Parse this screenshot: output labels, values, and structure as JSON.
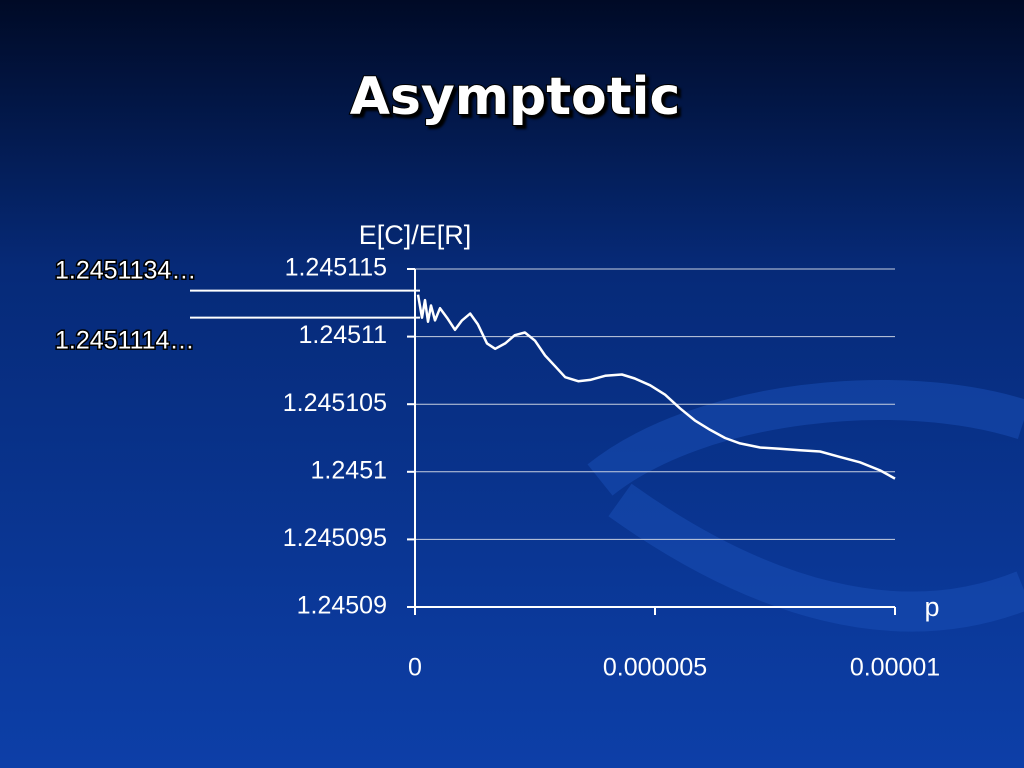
{
  "chart_data": {
    "type": "line",
    "title": "Asymptotic",
    "y_label": "E[C]/E[R]",
    "x_label": "p",
    "color": "#ffffff",
    "grid": true,
    "xlim": [
      0,
      1e-05
    ],
    "xticks": [
      0,
      5e-06,
      1e-05
    ],
    "ylim": [
      1.24509,
      1.245115
    ],
    "yticks": [
      1.24509,
      1.245095,
      1.2451,
      1.245105,
      1.24511,
      1.245115
    ],
    "reference_lines": [
      {
        "value": 1.2451134,
        "label": "1.2451134…"
      },
      {
        "value": 1.2451114,
        "label": "1.2451114…"
      }
    ],
    "x": [
      6.25e-08,
      1.46e-07,
      2.08e-07,
      2.71e-07,
      3.33e-07,
      4.17e-07,
      5.21e-07,
      6.67e-07,
      8.33e-07,
      9.79e-07,
      1.15e-06,
      1.31e-06,
      1.5e-06,
      1.67e-06,
      1.88e-06,
      2.08e-06,
      2.29e-06,
      2.5e-06,
      2.71e-06,
      2.92e-06,
      3.13e-06,
      3.4e-06,
      3.65e-06,
      3.96e-06,
      4.31e-06,
      4.58e-06,
      4.9e-06,
      5.21e-06,
      5.52e-06,
      5.83e-06,
      6.15e-06,
      6.46e-06,
      6.77e-06,
      7.19e-06,
      7.6e-06,
      8.02e-06,
      8.44e-06,
      8.85e-06,
      9.27e-06,
      9.69e-06,
      1e-05
    ],
    "values": [
      1.2451131,
      1.2451114,
      1.2451127,
      1.2451111,
      1.2451123,
      1.2451112,
      1.2451121,
      1.2451114,
      1.2451105,
      1.2451112,
      1.2451117,
      1.2451109,
      1.2451095,
      1.2451091,
      1.2451095,
      1.2451101,
      1.2451103,
      1.2451097,
      1.2451086,
      1.2451078,
      1.245107,
      1.2451067,
      1.2451068,
      1.2451071,
      1.2451072,
      1.2451069,
      1.2451064,
      1.2451057,
      1.2451047,
      1.2451038,
      1.2451031,
      1.2451025,
      1.2451021,
      1.2451018,
      1.2451017,
      1.2451016,
      1.2451015,
      1.2451011,
      1.2451007,
      1.2451001,
      1.2450995
    ]
  }
}
